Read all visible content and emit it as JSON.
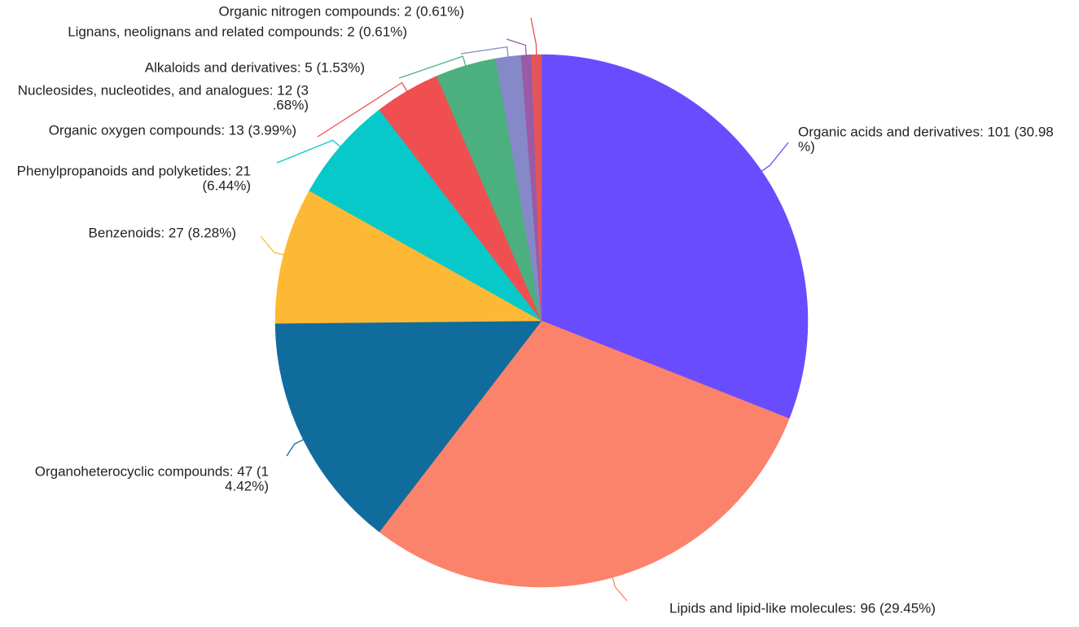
{
  "chart_data": {
    "type": "pie",
    "categories": [
      "Organic acids and derivatives",
      "Lipids and lipid-like molecules",
      "Organoheterocyclic compounds",
      "Benzenoids",
      "Phenylpropanoids and polyketides",
      "Organic oxygen compounds",
      "Nucleosides, nucleotides, and analogues",
      "Alkaloids and derivatives",
      "Lignans, neolignans and related compounds",
      "Organic nitrogen compounds"
    ],
    "values": [
      101,
      96,
      47,
      27,
      21,
      13,
      12,
      5,
      2,
      2
    ],
    "value_labels": [
      [
        "Organic acids and derivatives: 101 (30.98",
        "%)"
      ],
      [
        "Lipids and lipid-like molecules: 96 (29.45%)"
      ],
      [
        "Organoheterocyclic compounds: 47 (1",
        "4.42%)"
      ],
      [
        "Benzenoids: 27 (8.28%)"
      ],
      [
        "Phenylpropanoids and polyketides: 21",
        "(6.44%)"
      ],
      [
        "Organic oxygen compounds: 13 (3.99%)"
      ],
      [
        "Nucleosides, nucleotides, and analogues: 12 (3",
        ".68%)"
      ],
      [
        "Alkaloids and derivatives: 5 (1.53%)"
      ],
      [
        "Lignans, neolignans and related compounds: 2 (0.61%)"
      ],
      [
        "Organic nitrogen compounds: 2 (0.61%)"
      ]
    ],
    "colors": [
      "#6a4cff",
      "#fb826b",
      "#106c9c",
      "#fdb935",
      "#08c9ca",
      "#ef4f50",
      "#4caf7e",
      "#8589c8",
      "#9a5aa6",
      "#e3555a"
    ]
  }
}
